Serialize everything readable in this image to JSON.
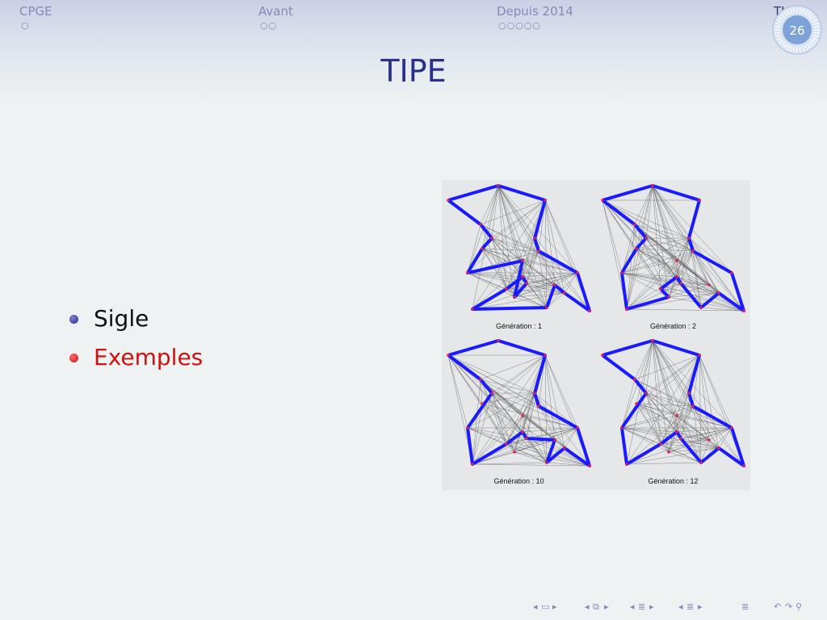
{
  "nav": {
    "sections": [
      {
        "label": "CPGE",
        "dots": "○"
      },
      {
        "label": "Avant",
        "dots": "○○"
      },
      {
        "label": "Depuis 2014",
        "dots": "○○○○○"
      },
      {
        "label": "TI",
        "dots": ""
      }
    ],
    "slide_number": "26"
  },
  "slide": {
    "title": "TIPE",
    "bullets": [
      {
        "label": "Sigle",
        "color": "#111111"
      },
      {
        "label": "Exemples",
        "color": "#d01010"
      }
    ]
  },
  "figure": {
    "panels": [
      {
        "caption": "Génération : 1"
      },
      {
        "caption": "Génération : 2"
      },
      {
        "caption": "Génération : 10"
      },
      {
        "caption": "Génération : 12"
      }
    ],
    "route_color": "#1a1aff",
    "node_color": "#e0205a"
  },
  "beamer_nav": {
    "icons": [
      "slide-prev-icon",
      "slide-icon",
      "slide-next-icon",
      "frame-prev-icon",
      "frame-icon",
      "frame-next-icon",
      "subsection-prev-icon",
      "subsection-icon",
      "subsection-next-icon",
      "section-prev-icon",
      "section-icon",
      "section-next-icon",
      "toc-icon",
      "back-icon",
      "forward-icon",
      "search-icon"
    ]
  },
  "colors": {
    "structure": "#2a2f8c",
    "nav_text": "#8588b6",
    "alert": "#d01010"
  }
}
